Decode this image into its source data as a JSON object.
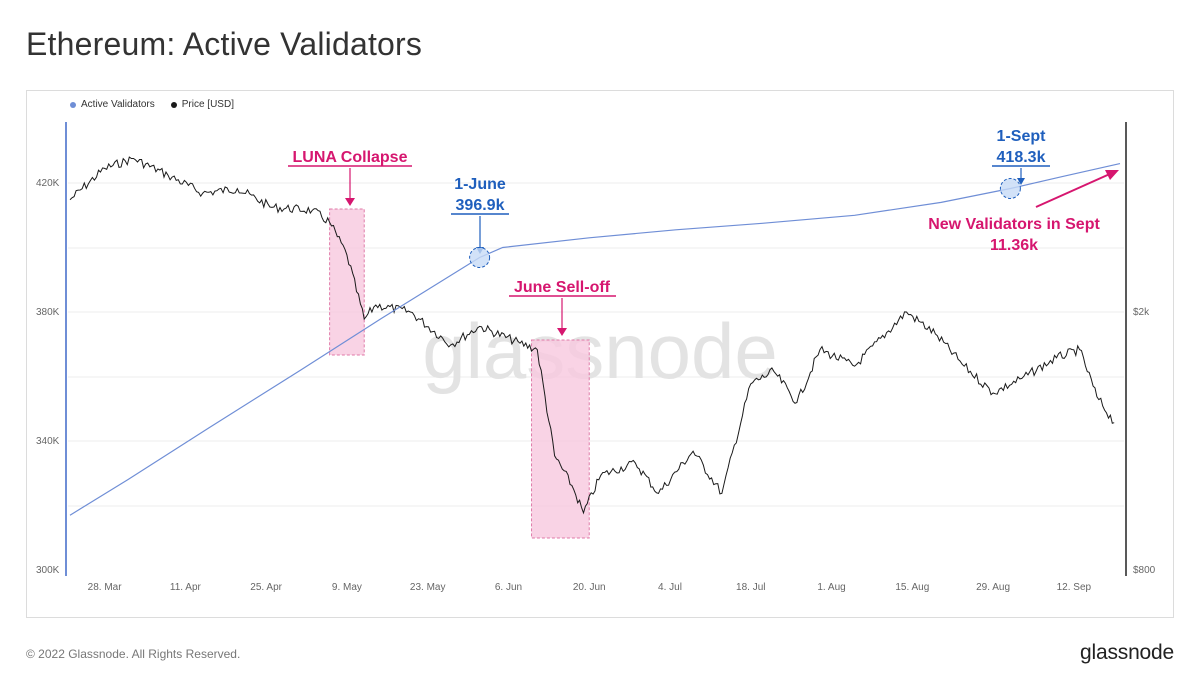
{
  "title": "Ethereum: Active Validators",
  "footer": {
    "copyright": "© 2022 Glassnode. All Rights Reserved.",
    "logo": "glassnode"
  },
  "watermark": "glassnode",
  "colors": {
    "validators": "#6f8ed6",
    "price": "#1a1a1a",
    "annotation_pink": "#d6166f",
    "annotation_blue": "#1f5fbd",
    "shade": "#f8c8de"
  },
  "chart_data": {
    "type": "line",
    "legend": [
      "Active Validators",
      "Price [USD]"
    ],
    "legend_position": "top-left",
    "grid": true,
    "x_ticks": [
      "28. Mar",
      "11. Apr",
      "25. Apr",
      "9. May",
      "23. May",
      "6. Jun",
      "20. Jun",
      "4. Jul",
      "18. Jul",
      "1. Aug",
      "15. Aug",
      "29. Aug",
      "12. Sep"
    ],
    "y_left_ticks": [
      "420K",
      "380K",
      "340K",
      "300K"
    ],
    "y_right_ticks": [
      "$2k",
      "$800"
    ],
    "y_left_range": [
      300000,
      430000
    ],
    "series": [
      {
        "name": "Active Validators",
        "axis": "left",
        "points": [
          {
            "date": "2022-03-22",
            "value": 317000
          },
          {
            "date": "2022-04-01",
            "value": 328000
          },
          {
            "date": "2022-04-15",
            "value": 344000
          },
          {
            "date": "2022-05-01",
            "value": 362000
          },
          {
            "date": "2022-05-15",
            "value": 378000
          },
          {
            "date": "2022-06-01",
            "value": 396900
          },
          {
            "date": "2022-06-05",
            "value": 400000
          },
          {
            "date": "2022-06-20",
            "value": 403000
          },
          {
            "date": "2022-07-05",
            "value": 405500
          },
          {
            "date": "2022-07-20",
            "value": 407500
          },
          {
            "date": "2022-08-05",
            "value": 410000
          },
          {
            "date": "2022-08-20",
            "value": 414000
          },
          {
            "date": "2022-09-01",
            "value": 418300
          },
          {
            "date": "2022-09-10",
            "value": 422000
          },
          {
            "date": "2022-09-20",
            "value": 426000
          }
        ]
      },
      {
        "name": "Price [USD]",
        "axis": "right",
        "points": [
          {
            "date": "2022-03-22",
            "value": 2980
          },
          {
            "date": "2022-03-28",
            "value": 3330
          },
          {
            "date": "2022-04-02",
            "value": 3450
          },
          {
            "date": "2022-04-08",
            "value": 3250
          },
          {
            "date": "2022-04-14",
            "value": 3050
          },
          {
            "date": "2022-04-20",
            "value": 3100
          },
          {
            "date": "2022-04-26",
            "value": 2900
          },
          {
            "date": "2022-05-03",
            "value": 2870
          },
          {
            "date": "2022-05-06",
            "value": 2750
          },
          {
            "date": "2022-05-09",
            "value": 2450
          },
          {
            "date": "2022-05-12",
            "value": 1950
          },
          {
            "date": "2022-05-14",
            "value": 2050
          },
          {
            "date": "2022-05-20",
            "value": 2000
          },
          {
            "date": "2022-05-27",
            "value": 1780
          },
          {
            "date": "2022-06-01",
            "value": 1900
          },
          {
            "date": "2022-06-08",
            "value": 1790
          },
          {
            "date": "2022-06-11",
            "value": 1750
          },
          {
            "date": "2022-06-14",
            "value": 1200
          },
          {
            "date": "2022-06-17",
            "value": 1080
          },
          {
            "date": "2022-06-19",
            "value": 980
          },
          {
            "date": "2022-06-22",
            "value": 1120
          },
          {
            "date": "2022-06-28",
            "value": 1170
          },
          {
            "date": "2022-07-02",
            "value": 1050
          },
          {
            "date": "2022-07-08",
            "value": 1220
          },
          {
            "date": "2022-07-13",
            "value": 1050
          },
          {
            "date": "2022-07-18",
            "value": 1550
          },
          {
            "date": "2022-07-22",
            "value": 1620
          },
          {
            "date": "2022-07-26",
            "value": 1450
          },
          {
            "date": "2022-07-30",
            "value": 1750
          },
          {
            "date": "2022-08-05",
            "value": 1650
          },
          {
            "date": "2022-08-14",
            "value": 2000
          },
          {
            "date": "2022-08-19",
            "value": 1850
          },
          {
            "date": "2022-08-24",
            "value": 1650
          },
          {
            "date": "2022-08-29",
            "value": 1500
          },
          {
            "date": "2022-09-03",
            "value": 1580
          },
          {
            "date": "2022-09-09",
            "value": 1700
          },
          {
            "date": "2022-09-13",
            "value": 1750
          },
          {
            "date": "2022-09-16",
            "value": 1480
          },
          {
            "date": "2022-09-19",
            "value": 1350
          }
        ]
      }
    ],
    "annotations": [
      {
        "id": "luna",
        "label": "LUNA Collapse",
        "color": "pink",
        "start": "2022-05-06",
        "end": "2022-05-12"
      },
      {
        "id": "june-selloff",
        "label": "June Sell-off",
        "color": "pink",
        "start": "2022-06-10",
        "end": "2022-06-20"
      },
      {
        "id": "june-1",
        "label": "1-June",
        "value_label": "396.9k",
        "date": "2022-06-01",
        "value": 396900,
        "color": "blue"
      },
      {
        "id": "sept-1",
        "label": "1-Sept",
        "value_label": "418.3k",
        "date": "2022-09-01",
        "value": 418300,
        "color": "blue"
      },
      {
        "id": "new-validators",
        "label": "New Validators in Sept",
        "value_label": "11.36k",
        "color": "pink"
      }
    ]
  }
}
